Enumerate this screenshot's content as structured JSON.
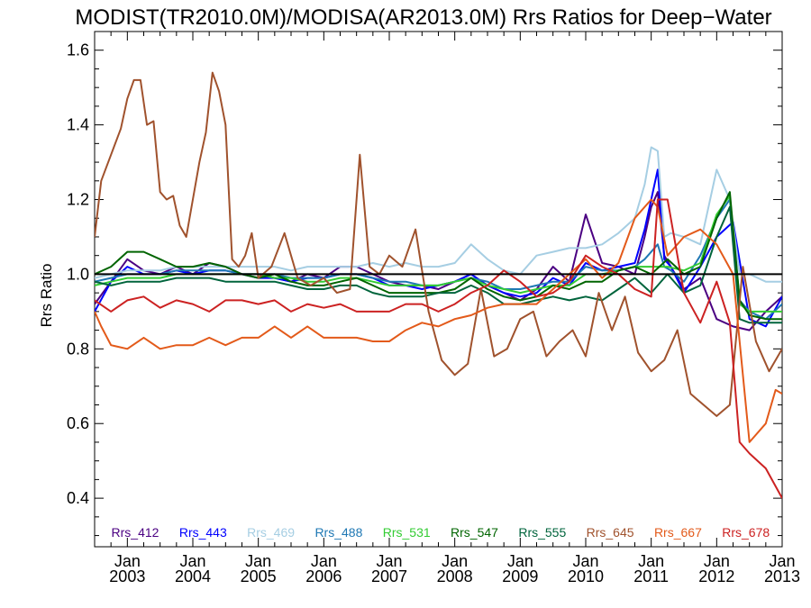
{
  "chart_data": {
    "type": "line",
    "title": "MODIST(TR2010.0M)/MODISA(AR2013.0M)  Rrs Ratios for Deep−Water",
    "ylabel": "Rrs Ratio",
    "xlabel": "",
    "xlim": [
      2002.5,
      2013.0
    ],
    "ylim": [
      0.27,
      1.65
    ],
    "yticks": [
      0.4,
      0.6,
      0.8,
      1.0,
      1.2,
      1.4,
      1.6
    ],
    "ytick_labels": [
      "0.4",
      "0.6",
      "0.8",
      "1.0",
      "1.2",
      "1.4",
      "1.6"
    ],
    "xticks": [
      2003,
      2004,
      2005,
      2006,
      2007,
      2008,
      2009,
      2010,
      2011,
      2012,
      2013
    ],
    "xtick_labels": [
      [
        "Jan",
        "2003"
      ],
      [
        "Jan",
        "2004"
      ],
      [
        "Jan",
        "2005"
      ],
      [
        "Jan",
        "2006"
      ],
      [
        "Jan",
        "2007"
      ],
      [
        "Jan",
        "2008"
      ],
      [
        "Jan",
        "2009"
      ],
      [
        "Jan",
        "2010"
      ],
      [
        "Jan",
        "2011"
      ],
      [
        "Jan",
        "2012"
      ],
      [
        "Jan",
        "2013"
      ]
    ],
    "reference_line": {
      "y": 1.0,
      "color": "#000000"
    },
    "legend_position": "bottom",
    "series": [
      {
        "name": "Rrs_412",
        "color": "#4b0082",
        "x": [
          2002.5,
          2002.75,
          2003.0,
          2003.25,
          2003.5,
          2003.75,
          2004.0,
          2004.25,
          2004.5,
          2004.75,
          2005.0,
          2005.25,
          2005.5,
          2005.75,
          2006.0,
          2006.25,
          2006.5,
          2006.75,
          2007.0,
          2007.25,
          2007.5,
          2007.75,
          2008.0,
          2008.25,
          2008.5,
          2008.75,
          2009.0,
          2009.25,
          2009.5,
          2009.75,
          2010.0,
          2010.25,
          2010.5,
          2010.75,
          2010.9,
          2011.0,
          2011.1,
          2011.2,
          2011.3,
          2011.5,
          2011.75,
          2012.0,
          2012.25,
          2012.5,
          2012.75,
          2013.0
        ],
        "values": [
          0.92,
          0.98,
          1.04,
          1.01,
          1.0,
          1.02,
          1.0,
          1.03,
          1.02,
          1.0,
          1.0,
          0.99,
          0.98,
          1.0,
          0.99,
          1.02,
          1.02,
          1.0,
          0.98,
          0.97,
          0.97,
          0.96,
          0.98,
          1.0,
          0.97,
          0.95,
          0.93,
          0.96,
          1.02,
          0.98,
          1.16,
          1.03,
          1.02,
          1.0,
          1.1,
          1.18,
          1.22,
          1.05,
          1.02,
          0.96,
          0.99,
          0.88,
          0.86,
          0.85,
          0.9,
          0.94
        ]
      },
      {
        "name": "Rrs_443",
        "color": "#0000ff",
        "x": [
          2002.5,
          2002.75,
          2003.0,
          2003.25,
          2003.5,
          2003.75,
          2004.0,
          2004.25,
          2004.5,
          2004.75,
          2005.0,
          2005.25,
          2005.5,
          2005.75,
          2006.0,
          2006.25,
          2006.5,
          2006.75,
          2007.0,
          2007.25,
          2007.5,
          2007.75,
          2008.0,
          2008.25,
          2008.5,
          2008.75,
          2009.0,
          2009.25,
          2009.5,
          2009.75,
          2010.0,
          2010.25,
          2010.5,
          2010.75,
          2010.9,
          2011.0,
          2011.1,
          2011.2,
          2011.3,
          2011.5,
          2011.75,
          2012.0,
          2012.25,
          2012.5,
          2012.75,
          2013.0
        ],
        "values": [
          0.9,
          0.98,
          1.02,
          1.0,
          1.0,
          1.01,
          1.0,
          1.01,
          1.01,
          1.0,
          0.99,
          0.99,
          0.98,
          0.99,
          0.99,
          1.0,
          1.0,
          0.99,
          0.97,
          0.97,
          0.96,
          0.97,
          0.98,
          1.0,
          0.97,
          0.95,
          0.94,
          0.95,
          0.99,
          0.97,
          1.03,
          1.01,
          1.02,
          1.03,
          1.12,
          1.2,
          1.28,
          1.04,
          1.02,
          0.95,
          1.02,
          1.1,
          1.14,
          0.88,
          0.86,
          0.94
        ]
      },
      {
        "name": "Rrs_469",
        "color": "#a6cee3",
        "x": [
          2002.5,
          2002.75,
          2003.0,
          2003.25,
          2003.5,
          2003.75,
          2004.0,
          2004.25,
          2004.5,
          2004.75,
          2005.0,
          2005.25,
          2005.5,
          2005.75,
          2006.0,
          2006.25,
          2006.5,
          2006.75,
          2007.0,
          2007.25,
          2007.5,
          2007.75,
          2008.0,
          2008.25,
          2008.5,
          2008.75,
          2009.0,
          2009.25,
          2009.5,
          2009.75,
          2010.0,
          2010.25,
          2010.5,
          2010.75,
          2010.9,
          2011.0,
          2011.1,
          2011.2,
          2011.3,
          2011.5,
          2011.75,
          2012.0,
          2012.2,
          2012.35,
          2012.5,
          2012.75,
          2013.0
        ],
        "values": [
          0.99,
          1.0,
          1.01,
          1.01,
          1.01,
          1.02,
          1.02,
          1.02,
          1.02,
          1.02,
          1.02,
          1.02,
          1.01,
          1.02,
          1.02,
          1.02,
          1.02,
          1.03,
          1.02,
          1.03,
          1.02,
          1.02,
          1.03,
          1.08,
          1.04,
          1.01,
          1.0,
          1.05,
          1.06,
          1.07,
          1.07,
          1.08,
          1.11,
          1.15,
          1.24,
          1.34,
          1.33,
          1.1,
          1.11,
          1.1,
          1.08,
          1.28,
          1.2,
          1.0,
          1.0,
          0.98,
          0.98
        ]
      },
      {
        "name": "Rrs_488",
        "color": "#1f78b4",
        "x": [
          2002.5,
          2002.75,
          2003.0,
          2003.25,
          2003.5,
          2003.75,
          2004.0,
          2004.25,
          2004.5,
          2004.75,
          2005.0,
          2005.25,
          2005.5,
          2005.75,
          2006.0,
          2006.25,
          2006.5,
          2006.75,
          2007.0,
          2007.25,
          2007.5,
          2007.75,
          2008.0,
          2008.25,
          2008.5,
          2008.75,
          2009.0,
          2009.25,
          2009.5,
          2009.75,
          2010.0,
          2010.25,
          2010.5,
          2010.75,
          2010.9,
          2011.0,
          2011.1,
          2011.2,
          2011.3,
          2011.5,
          2011.75,
          2012.0,
          2012.2,
          2012.35,
          2012.5,
          2012.75,
          2013.0
        ],
        "values": [
          0.98,
          0.99,
          1.0,
          1.0,
          1.0,
          1.01,
          1.01,
          1.01,
          1.01,
          1.0,
          1.0,
          1.0,
          0.99,
          0.99,
          0.99,
          1.0,
          1.0,
          0.99,
          0.98,
          0.98,
          0.97,
          0.97,
          0.98,
          0.99,
          0.98,
          0.96,
          0.96,
          0.97,
          0.98,
          0.98,
          1.02,
          1.01,
          1.01,
          1.02,
          1.04,
          1.06,
          1.08,
          1.02,
          1.01,
          0.98,
          1.05,
          1.15,
          1.2,
          0.93,
          0.9,
          0.88,
          0.92
        ]
      },
      {
        "name": "Rrs_531",
        "color": "#33cc33",
        "x": [
          2002.5,
          2002.75,
          2003.0,
          2003.25,
          2003.5,
          2003.75,
          2004.0,
          2004.25,
          2004.5,
          2004.75,
          2005.0,
          2005.25,
          2005.5,
          2005.75,
          2006.0,
          2006.25,
          2006.5,
          2006.75,
          2007.0,
          2007.25,
          2007.5,
          2007.75,
          2008.0,
          2008.25,
          2008.5,
          2008.75,
          2009.0,
          2009.25,
          2009.5,
          2009.75,
          2010.0,
          2010.25,
          2010.5,
          2010.75,
          2011.0,
          2011.25,
          2011.5,
          2011.75,
          2012.0,
          2012.2,
          2012.35,
          2012.5,
          2012.75,
          2013.0
        ],
        "values": [
          0.97,
          0.98,
          0.99,
          0.99,
          0.99,
          1.0,
          1.0,
          1.0,
          1.0,
          1.0,
          1.0,
          0.99,
          0.99,
          0.98,
          0.98,
          0.99,
          0.99,
          0.98,
          0.97,
          0.97,
          0.97,
          0.97,
          0.98,
          0.99,
          0.97,
          0.96,
          0.95,
          0.96,
          0.97,
          0.97,
          1.0,
          1.0,
          1.01,
          1.02,
          1.02,
          1.02,
          1.01,
          1.03,
          1.16,
          1.21,
          0.92,
          0.9,
          0.9,
          0.9
        ]
      },
      {
        "name": "Rrs_547",
        "color": "#006400",
        "x": [
          2002.5,
          2002.75,
          2003.0,
          2003.25,
          2003.5,
          2003.75,
          2004.0,
          2004.25,
          2004.5,
          2004.75,
          2005.0,
          2005.25,
          2005.5,
          2005.75,
          2006.0,
          2006.25,
          2006.5,
          2006.75,
          2007.0,
          2007.25,
          2007.5,
          2007.75,
          2008.0,
          2008.25,
          2008.5,
          2008.75,
          2009.0,
          2009.25,
          2009.5,
          2009.75,
          2010.0,
          2010.25,
          2010.5,
          2010.75,
          2011.0,
          2011.25,
          2011.5,
          2011.75,
          2012.0,
          2012.2,
          2012.35,
          2012.5,
          2012.75,
          2013.0
        ],
        "values": [
          1.0,
          1.02,
          1.06,
          1.06,
          1.04,
          1.02,
          1.02,
          1.03,
          1.02,
          1.0,
          0.99,
          1.0,
          0.98,
          0.97,
          0.97,
          0.98,
          0.99,
          0.97,
          0.95,
          0.95,
          0.95,
          0.95,
          0.96,
          0.99,
          0.96,
          0.94,
          0.93,
          0.94,
          0.97,
          0.96,
          0.98,
          0.98,
          1.01,
          1.02,
          1.0,
          1.04,
          1.0,
          1.02,
          1.15,
          1.22,
          0.93,
          0.89,
          0.88,
          0.88
        ]
      },
      {
        "name": "Rrs_555",
        "color": "#00643c",
        "x": [
          2002.5,
          2002.75,
          2003.0,
          2003.25,
          2003.5,
          2003.75,
          2004.0,
          2004.25,
          2004.5,
          2004.75,
          2005.0,
          2005.25,
          2005.5,
          2005.75,
          2006.0,
          2006.25,
          2006.5,
          2006.75,
          2007.0,
          2007.25,
          2007.5,
          2007.75,
          2008.0,
          2008.25,
          2008.5,
          2008.75,
          2009.0,
          2009.25,
          2009.5,
          2009.75,
          2010.0,
          2010.25,
          2010.5,
          2010.75,
          2011.0,
          2011.25,
          2011.5,
          2011.75,
          2012.0,
          2012.2,
          2012.35,
          2012.5,
          2012.75,
          2013.0
        ],
        "values": [
          0.98,
          0.97,
          0.98,
          0.98,
          0.98,
          0.99,
          0.99,
          0.99,
          0.98,
          0.98,
          0.98,
          0.98,
          0.97,
          0.96,
          0.96,
          0.97,
          0.97,
          0.95,
          0.94,
          0.94,
          0.94,
          0.95,
          0.95,
          0.97,
          0.95,
          0.92,
          0.92,
          0.93,
          0.94,
          0.93,
          0.94,
          0.93,
          0.96,
          0.99,
          0.95,
          1.0,
          0.95,
          0.97,
          1.1,
          1.18,
          0.88,
          0.87,
          0.87,
          0.87
        ]
      },
      {
        "name": "Rrs_645",
        "color": "#a0522d",
        "x": [
          2002.5,
          2002.6,
          2002.75,
          2002.9,
          2003.0,
          2003.1,
          2003.2,
          2003.3,
          2003.4,
          2003.5,
          2003.6,
          2003.7,
          2003.8,
          2003.9,
          2004.0,
          2004.1,
          2004.2,
          2004.3,
          2004.4,
          2004.5,
          2004.6,
          2004.7,
          2004.8,
          2004.9,
          2005.0,
          2005.2,
          2005.4,
          2005.6,
          2005.8,
          2006.0,
          2006.2,
          2006.4,
          2006.55,
          2006.7,
          2006.85,
          2007.0,
          2007.2,
          2007.4,
          2007.6,
          2007.8,
          2008.0,
          2008.2,
          2008.4,
          2008.6,
          2008.8,
          2009.0,
          2009.2,
          2009.4,
          2009.6,
          2009.8,
          2010.0,
          2010.2,
          2010.4,
          2010.6,
          2010.8,
          2011.0,
          2011.2,
          2011.4,
          2011.6,
          2011.8,
          2012.0,
          2012.2,
          2012.4,
          2012.6,
          2012.8,
          2013.0
        ],
        "values": [
          1.1,
          1.25,
          1.32,
          1.39,
          1.47,
          1.52,
          1.52,
          1.4,
          1.41,
          1.22,
          1.2,
          1.21,
          1.13,
          1.1,
          1.2,
          1.3,
          1.38,
          1.54,
          1.49,
          1.4,
          1.04,
          1.02,
          1.05,
          1.11,
          0.99,
          1.02,
          1.11,
          0.99,
          0.97,
          0.99,
          0.95,
          0.96,
          1.32,
          1.02,
          1.0,
          1.05,
          1.02,
          1.12,
          0.9,
          0.77,
          0.73,
          0.76,
          0.96,
          0.78,
          0.8,
          0.88,
          0.9,
          0.78,
          0.82,
          0.85,
          0.78,
          0.95,
          0.85,
          0.94,
          0.79,
          0.74,
          0.77,
          0.85,
          0.68,
          0.65,
          0.62,
          0.65,
          1.02,
          0.82,
          0.74,
          0.8
        ]
      },
      {
        "name": "Rrs_667",
        "color": "#e35a1a",
        "x": [
          2002.5,
          2002.6,
          2002.75,
          2003.0,
          2003.25,
          2003.5,
          2003.75,
          2004.0,
          2004.25,
          2004.5,
          2004.75,
          2005.0,
          2005.25,
          2005.5,
          2005.75,
          2006.0,
          2006.25,
          2006.5,
          2006.75,
          2007.0,
          2007.25,
          2007.5,
          2007.75,
          2008.0,
          2008.25,
          2008.5,
          2008.75,
          2009.0,
          2009.25,
          2009.5,
          2009.75,
          2010.0,
          2010.25,
          2010.5,
          2010.75,
          2011.0,
          2011.1,
          2011.25,
          2011.5,
          2011.75,
          2012.0,
          2012.25,
          2012.5,
          2012.75,
          2012.9,
          2013.0
        ],
        "values": [
          0.9,
          0.86,
          0.81,
          0.8,
          0.83,
          0.8,
          0.81,
          0.81,
          0.83,
          0.81,
          0.83,
          0.83,
          0.86,
          0.83,
          0.86,
          0.83,
          0.83,
          0.83,
          0.82,
          0.82,
          0.85,
          0.87,
          0.86,
          0.88,
          0.89,
          0.91,
          0.92,
          0.92,
          0.92,
          0.96,
          1.0,
          1.04,
          0.99,
          1.03,
          1.15,
          1.2,
          1.18,
          1.05,
          1.1,
          1.12,
          1.08,
          1.0,
          0.55,
          0.6,
          0.69,
          0.68
        ]
      },
      {
        "name": "Rrs_678",
        "color": "#cc2222",
        "x": [
          2002.5,
          2002.75,
          2003.0,
          2003.25,
          2003.5,
          2003.75,
          2004.0,
          2004.25,
          2004.5,
          2004.75,
          2005.0,
          2005.25,
          2005.5,
          2005.75,
          2006.0,
          2006.25,
          2006.5,
          2006.75,
          2007.0,
          2007.25,
          2007.5,
          2007.75,
          2008.0,
          2008.25,
          2008.5,
          2008.75,
          2009.0,
          2009.25,
          2009.5,
          2009.75,
          2010.0,
          2010.25,
          2010.5,
          2010.75,
          2011.0,
          2011.1,
          2011.25,
          2011.5,
          2011.75,
          2012.0,
          2012.2,
          2012.35,
          2012.5,
          2012.75,
          2013.0
        ],
        "values": [
          0.93,
          0.9,
          0.93,
          0.94,
          0.91,
          0.93,
          0.92,
          0.9,
          0.93,
          0.93,
          0.92,
          0.93,
          0.9,
          0.92,
          0.91,
          0.92,
          0.9,
          0.9,
          0.9,
          0.92,
          0.92,
          0.9,
          0.92,
          0.95,
          0.97,
          1.01,
          0.98,
          0.94,
          0.95,
          0.98,
          1.05,
          1.02,
          1.0,
          0.96,
          0.94,
          1.2,
          1.2,
          0.95,
          0.87,
          0.98,
          0.87,
          0.55,
          0.52,
          0.48,
          0.4
        ]
      }
    ]
  }
}
